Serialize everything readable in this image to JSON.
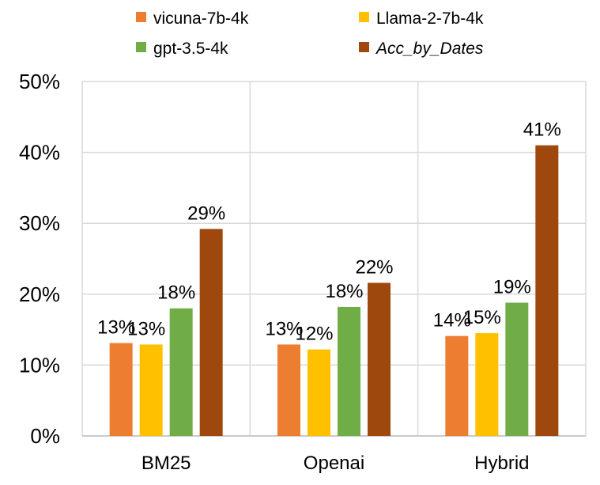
{
  "chart_data": {
    "type": "bar",
    "categories": [
      "BM25",
      "Openai",
      "Hybrid"
    ],
    "series": [
      {
        "name": "vicuna-7b-4k",
        "color": "#ED7D31",
        "values": [
          13.1,
          12.9,
          14.1
        ],
        "labels": [
          "13%",
          "13%",
          "14%"
        ]
      },
      {
        "name": "Llama-2-7b-4k",
        "color": "#FFC000",
        "values": [
          12.9,
          12.2,
          14.5
        ],
        "labels": [
          "13%",
          "12%",
          "15%"
        ]
      },
      {
        "name": "gpt-3.5-4k",
        "color": "#70AD47",
        "values": [
          18.0,
          18.2,
          18.8
        ],
        "labels": [
          "18%",
          "18%",
          "19%"
        ]
      },
      {
        "name": "Acc_by_Dates",
        "color": "#9E480E",
        "values": [
          29.2,
          21.6,
          41.0
        ],
        "labels": [
          "29%",
          "22%",
          "41%"
        ],
        "italic": true
      }
    ],
    "ylim": [
      0,
      50
    ],
    "yticks": [
      "0%",
      "10%",
      "20%",
      "30%",
      "40%",
      "50%"
    ],
    "title": "",
    "xlabel": "",
    "ylabel": "",
    "grid": "horizontal and vertical",
    "legend_position": "top"
  }
}
